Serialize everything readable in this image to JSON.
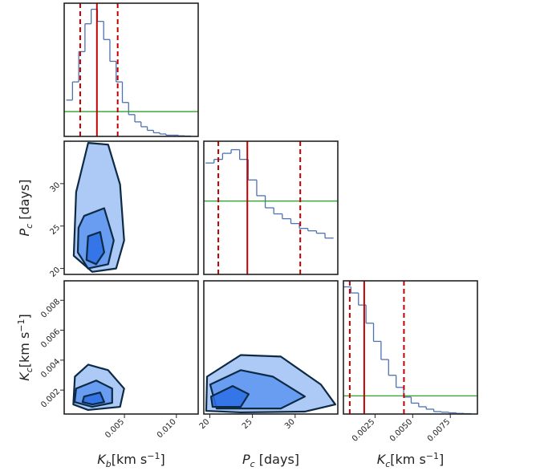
{
  "chart_data": [
    {
      "type": "histogram",
      "color": "#4c72b0",
      "xlim": [
        -0.0008,
        0.0121
      ],
      "ylim": [
        0,
        1.1
      ],
      "bins": [
        -0.0006,
        0.0,
        0.0006,
        0.0012,
        0.0018,
        0.0024,
        0.003,
        0.0036,
        0.0042,
        0.0048,
        0.0054,
        0.006,
        0.0066,
        0.0072,
        0.0078,
        0.0084,
        0.009,
        0.0096,
        0.0102,
        0.0108,
        0.0114
      ],
      "counts": [
        0.3,
        0.45,
        0.7,
        0.93,
        1.05,
        0.95,
        0.8,
        0.62,
        0.45,
        0.28,
        0.18,
        0.12,
        0.08,
        0.05,
        0.03,
        0.02,
        0.01,
        0.01,
        0.005,
        0.003
      ],
      "percentiles": [
        0.00074,
        0.00235,
        0.00435
      ],
      "percentile_color": "#c00000",
      "hline": 0.205,
      "hline_color": "#2ca02c"
    },
    {
      "type": "contour",
      "xlim": [
        -0.0008,
        0.0121
      ],
      "ylim": [
        19.3,
        35
      ],
      "contour_color": "#0d2a45",
      "fill_colors": [
        "#9fbff5",
        "#5c95f0",
        "#2b6fe6"
      ],
      "yticks": [
        20,
        25,
        30
      ],
      "ylabel": {
        "symbol": "P",
        "subscript": "c",
        "unit": " [days]"
      },
      "contours": [
        {
          "x": [
            0.00151,
            0.00343,
            0.00458,
            0.00497,
            0.0042,
            0.0019,
            0.00012,
            0.00035
          ],
          "y": [
            34.8,
            34.6,
            29.9,
            23.3,
            20.0,
            19.6,
            21.5,
            29.0
          ]
        },
        {
          "x": [
            0.00112,
            0.00305,
            0.00397,
            0.00343,
            0.0015,
            0.00051,
            0.00058
          ],
          "y": [
            26.2,
            27.1,
            23.3,
            20.5,
            20.0,
            21.9,
            24.8
          ]
        },
        {
          "x": [
            0.0015,
            0.00266,
            0.00305,
            0.00228,
            0.00135
          ],
          "y": [
            23.8,
            24.3,
            21.9,
            20.5,
            21.0
          ]
        }
      ]
    },
    {
      "type": "contour",
      "xlim": [
        -0.0008,
        0.0121
      ],
      "ylim": [
        0.0004,
        0.0093
      ],
      "contour_color": "#0d2a45",
      "fill_colors": [
        "#9fbff5",
        "#5c95f0",
        "#2b6fe6"
      ],
      "xticks": [
        0.005,
        {
          "value": 0.01,
          "label": "0.010"
        }
      ],
      "yticks": [
        0.002,
        0.004,
        0.006,
        0.008
      ],
      "xlabel": {
        "symbol": "K",
        "subscript": "b",
        "unit": "[km s",
        "superscript": "−1",
        "end": "]"
      },
      "ylabel": {
        "symbol": "K",
        "subscript": "c",
        "unit": "[km s",
        "superscript": "−1",
        "end": "]"
      },
      "contours": [
        {
          "x": [
            0.00023,
            0.00151,
            0.00343,
            0.00497,
            0.00458,
            0.0015,
            8e-05
          ],
          "y": [
            0.0029,
            0.0037,
            0.00333,
            0.0021,
            0.00088,
            0.00067,
            0.00104
          ]
        },
        {
          "x": [
            0.00035,
            0.00228,
            0.00382,
            0.00382,
            0.0019,
            0.0002
          ],
          "y": [
            0.0021,
            0.00264,
            0.0021,
            0.00115,
            0.00088,
            0.0012
          ]
        },
        {
          "x": [
            0.00112,
            0.00266,
            0.00305,
            0.0019,
            0.00097
          ],
          "y": [
            0.00157,
            0.00184,
            0.0012,
            0.00104,
            0.0012
          ]
        }
      ]
    },
    {
      "type": "histogram",
      "color": "#4c72b0",
      "xlim": [
        19.3,
        35
      ],
      "ylim": [
        0,
        1.1
      ],
      "bins": [
        19.5,
        20.5,
        21.5,
        22.5,
        23.5,
        24.5,
        25.5,
        26.5,
        27.5,
        28.5,
        29.5,
        30.5,
        31.5,
        32.5,
        33.5,
        34.5
      ],
      "counts": [
        0.92,
        0.95,
        1.0,
        1.03,
        0.95,
        0.78,
        0.65,
        0.55,
        0.5,
        0.46,
        0.42,
        0.38,
        0.36,
        0.34,
        0.3
      ],
      "percentiles": [
        21.0,
        24.4,
        30.6
      ],
      "percentile_color": "#c00000",
      "hline": 0.606,
      "hline_color": "#2ca02c"
    },
    {
      "type": "contour",
      "xlim": [
        19.3,
        35
      ],
      "ylim": [
        0.0004,
        0.0093
      ],
      "contour_color": "#0d2a45",
      "fill_colors": [
        "#9fbff5",
        "#5c95f0",
        "#2b6fe6"
      ],
      "xticks": [
        20,
        25,
        30
      ],
      "xlabel": {
        "symbol": "P",
        "subscript": "c",
        "unit": " [days]"
      },
      "contours": [
        {
          "x": [
            19.68,
            23.62,
            28.32,
            33.02,
            34.71,
            31.14,
            23.62,
            19.58
          ],
          "y": [
            0.0029,
            0.00434,
            0.00424,
            0.00237,
            0.00104,
            0.00056,
            0.00051,
            0.00061
          ]
        },
        {
          "x": [
            20.05,
            23.62,
            27.38,
            31.14,
            28.32,
            20.8
          ],
          "y": [
            0.00237,
            0.00333,
            0.0029,
            0.00157,
            0.00077,
            0.00077
          ]
        },
        {
          "x": [
            20.15,
            22.68,
            24.56,
            23.62,
            20.33
          ],
          "y": [
            0.00157,
            0.00227,
            0.00173,
            0.00088,
            0.00088
          ]
        }
      ]
    },
    {
      "type": "histogram",
      "color": "#4c72b0",
      "xlim": [
        0.0004,
        0.0093
      ],
      "ylim": [
        0,
        1.1
      ],
      "bins": [
        0.0004,
        0.0009,
        0.0014,
        0.0019,
        0.0024,
        0.0029,
        0.0034,
        0.0039,
        0.0044,
        0.0049,
        0.0054,
        0.0059,
        0.0064,
        0.0069,
        0.0074,
        0.0079,
        0.0084,
        0.0089
      ],
      "counts": [
        1.05,
        1.0,
        0.9,
        0.75,
        0.6,
        0.45,
        0.32,
        0.22,
        0.14,
        0.09,
        0.06,
        0.04,
        0.02,
        0.015,
        0.01,
        0.005,
        0.003
      ],
      "percentiles": [
        0.00082,
        0.00178,
        0.00442
      ],
      "percentile_color": "#c00000",
      "hline": 0.15,
      "hline_color": "#2ca02c",
      "xticks": [
        0.0025,
        {
          "value": 0.005,
          "label": "0.0050"
        },
        0.0075
      ],
      "xlabel": {
        "symbol": "K",
        "subscript": "c",
        "unit": "[km s",
        "superscript": "−1",
        "end": "]"
      }
    }
  ]
}
